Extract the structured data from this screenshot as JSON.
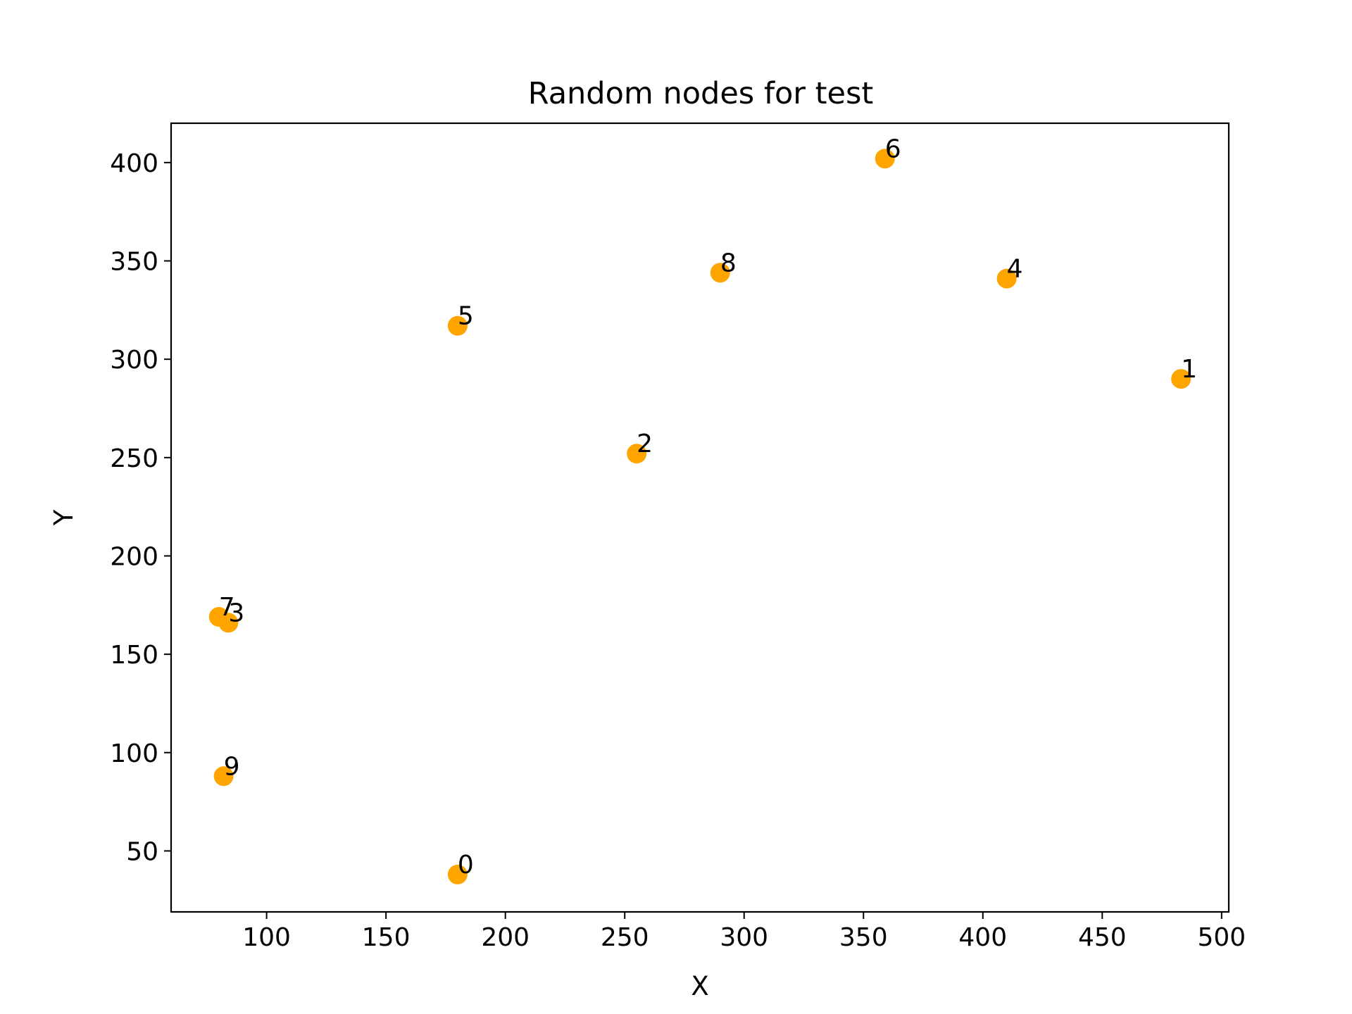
{
  "chart_data": {
    "type": "scatter",
    "title": "Random nodes for test",
    "xlabel": "X",
    "ylabel": "Y",
    "xlim": [
      60,
      503
    ],
    "ylim": [
      19,
      420
    ],
    "xticks": [
      100,
      150,
      200,
      250,
      300,
      350,
      400,
      450,
      500
    ],
    "yticks": [
      50,
      100,
      150,
      200,
      250,
      300,
      350,
      400
    ],
    "grid": false,
    "marker_color": "#ffa500",
    "points": [
      {
        "label": "0",
        "x": 180,
        "y": 38
      },
      {
        "label": "1",
        "x": 483,
        "y": 290
      },
      {
        "label": "2",
        "x": 255,
        "y": 252
      },
      {
        "label": "3",
        "x": 84,
        "y": 166
      },
      {
        "label": "4",
        "x": 410,
        "y": 341
      },
      {
        "label": "5",
        "x": 180,
        "y": 317
      },
      {
        "label": "6",
        "x": 359,
        "y": 402
      },
      {
        "label": "7",
        "x": 80,
        "y": 169
      },
      {
        "label": "8",
        "x": 290,
        "y": 344
      },
      {
        "label": "9",
        "x": 82,
        "y": 88
      }
    ]
  }
}
